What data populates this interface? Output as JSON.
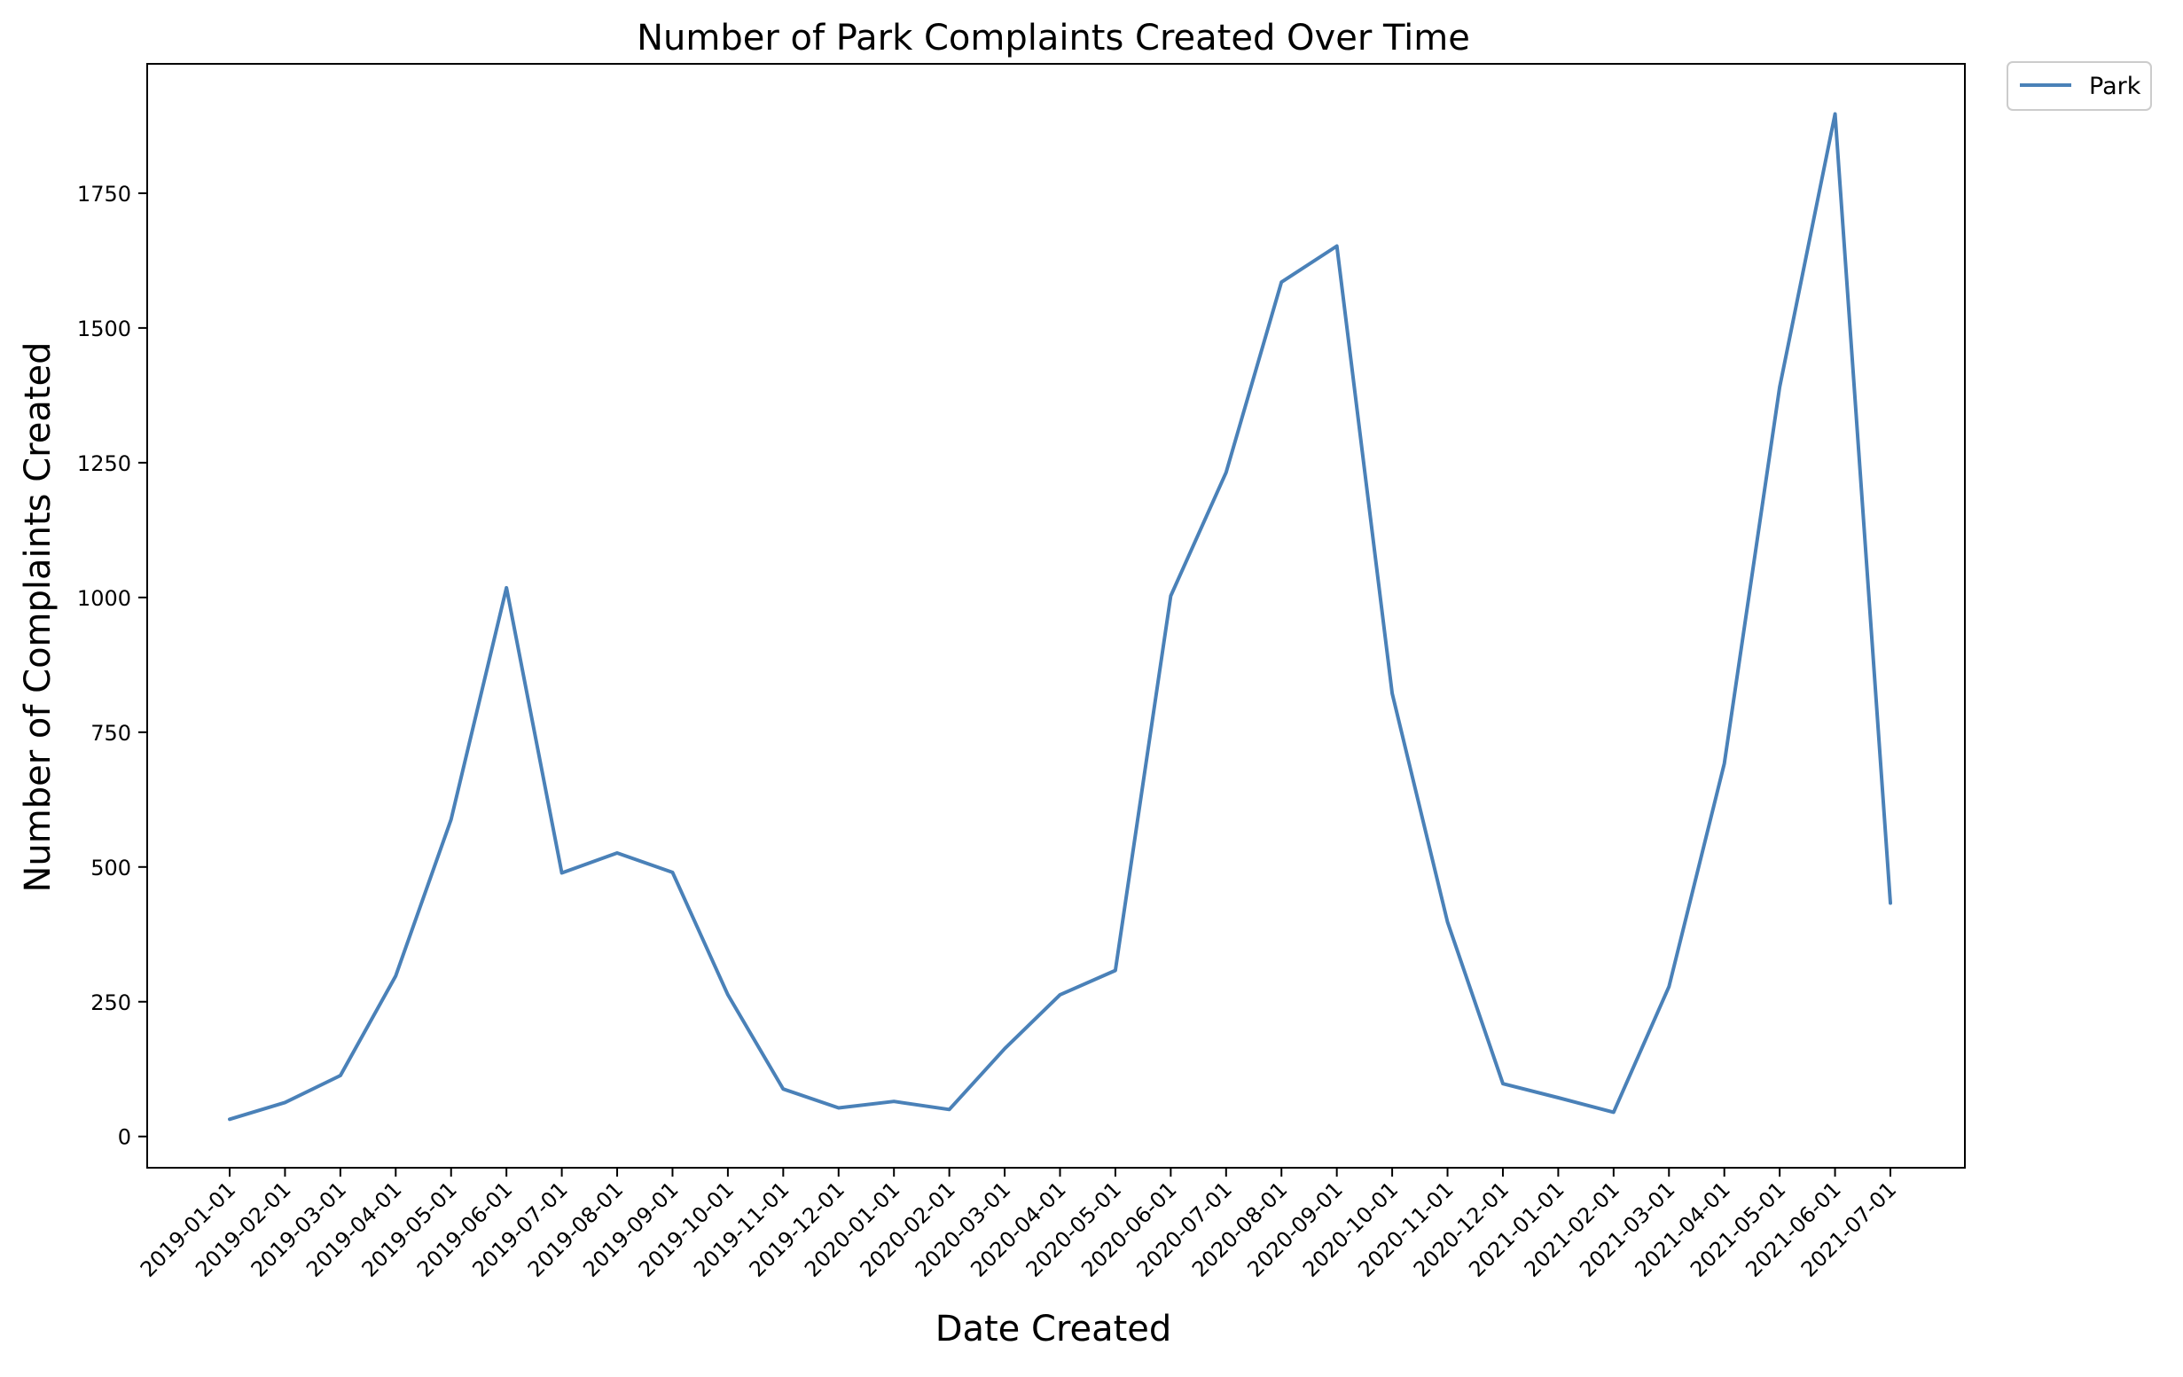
{
  "chart_data": {
    "type": "line",
    "title": "Number of Park Complaints Created Over Time",
    "xlabel": "Date Created",
    "ylabel": "Number of Complaints Created",
    "x": [
      "2019-01-01",
      "2019-02-01",
      "2019-03-01",
      "2019-04-01",
      "2019-05-01",
      "2019-06-01",
      "2019-07-01",
      "2019-08-01",
      "2019-09-01",
      "2019-10-01",
      "2019-11-01",
      "2019-12-01",
      "2020-01-01",
      "2020-02-01",
      "2020-03-01",
      "2020-04-01",
      "2020-05-01",
      "2020-06-01",
      "2020-07-01",
      "2020-08-01",
      "2020-09-01",
      "2020-10-01",
      "2020-11-01",
      "2020-12-01",
      "2021-01-01",
      "2021-02-01",
      "2021-03-01",
      "2021-04-01",
      "2021-05-01",
      "2021-06-01",
      "2021-07-01"
    ],
    "series": [
      {
        "name": "Park",
        "color": "#4a81b8",
        "values": [
          32,
          63,
          113,
          298,
          588,
          1018,
          489,
          526,
          490,
          263,
          88,
          53,
          65,
          50,
          163,
          263,
          308,
          1003,
          1232,
          1585,
          1652,
          822,
          398,
          98,
          72,
          45,
          278,
          692,
          1390,
          1897,
          433
        ]
      }
    ],
    "yticks": [
      "0",
      "250",
      "500",
      "750",
      "1000",
      "1250",
      "1500",
      "1750"
    ],
    "ylim": [
      -58,
      1990
    ],
    "legend_position": "upper-right-outside",
    "grid": false
  }
}
